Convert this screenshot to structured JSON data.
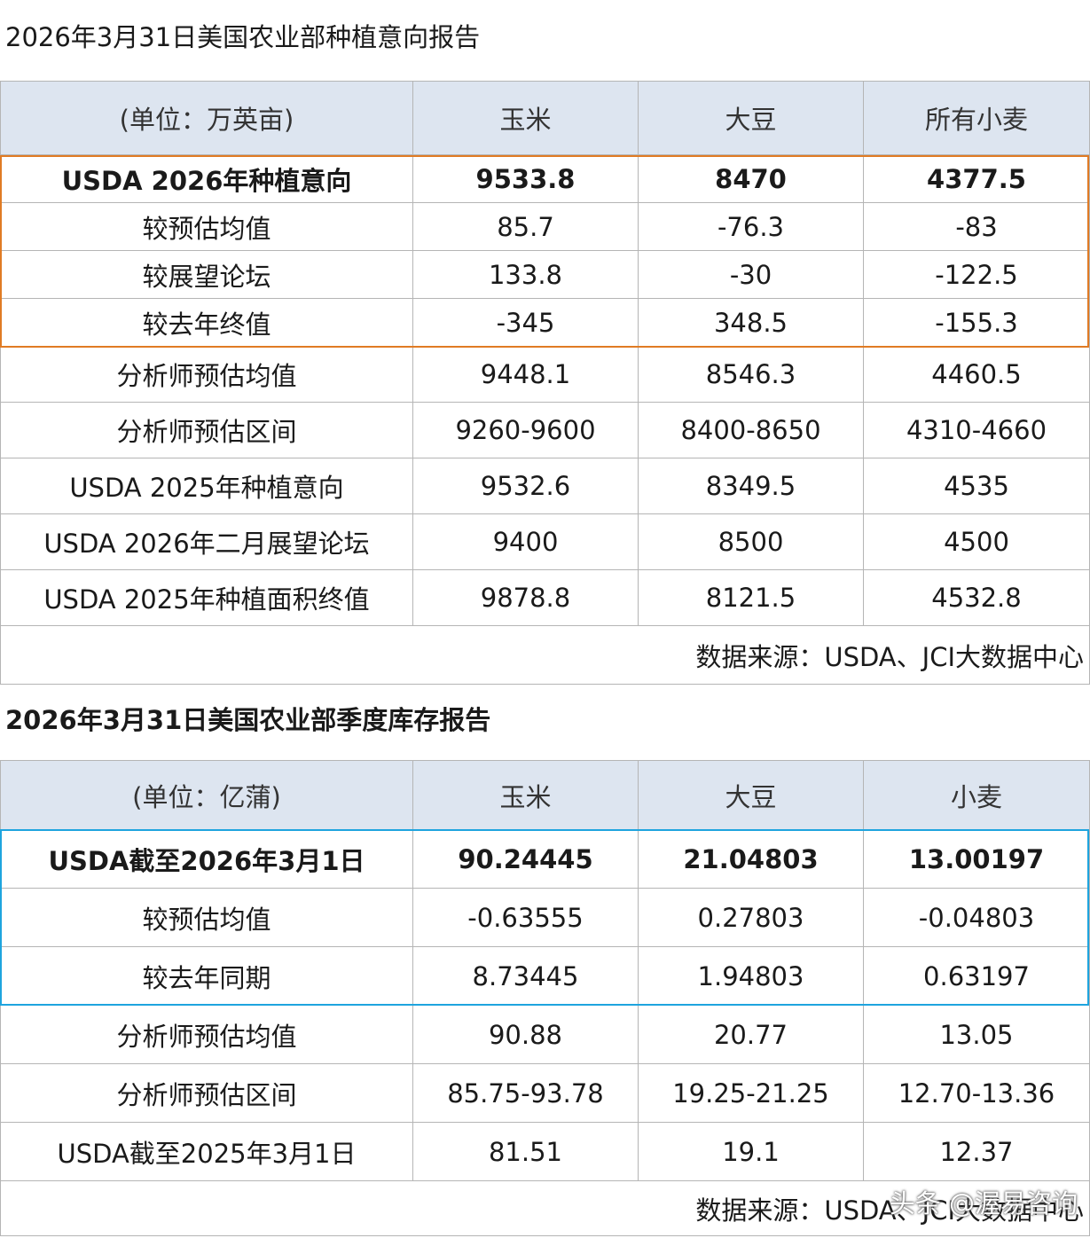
{
  "colors": {
    "orange_box": "#e07b24",
    "blue_box": "#1ea4de",
    "header_bg": "#dde5f0"
  },
  "table1": {
    "title": "2026年3月31日美国农业部种植意向报告",
    "headers": [
      "(单位：万英亩)",
      "玉米",
      "大豆",
      "所有小麦"
    ],
    "rows": [
      [
        "USDA 2026年种植意向",
        "9533.8",
        "8470",
        "4377.5"
      ],
      [
        "较预估均值",
        "85.7",
        "-76.3",
        "-83"
      ],
      [
        "较展望论坛",
        "133.8",
        "-30",
        "-122.5"
      ],
      [
        "较去年终值",
        "-345",
        "348.5",
        "-155.3"
      ],
      [
        "分析师预估均值",
        "9448.1",
        "8546.3",
        "4460.5"
      ],
      [
        "分析师预估区间",
        "9260-9600",
        "8400-8650",
        "4310-4660"
      ],
      [
        "USDA 2025年种植意向",
        "9532.6",
        "8349.5",
        "4535"
      ],
      [
        "USDA 2026年二月展望论坛",
        "9400",
        "8500",
        "4500"
      ],
      [
        "USDA  2025年种植面积终值",
        "9878.8",
        "8121.5",
        "4532.8"
      ]
    ],
    "source": "数据来源：USDA、JCI大数据中心"
  },
  "table2": {
    "title": "2026年3月31日美国农业部季度库存报告",
    "headers": [
      "(单位：亿蒲)",
      "玉米",
      "大豆",
      "小麦"
    ],
    "rows": [
      [
        "USDA截至2026年3月1日",
        "90.24445",
        "21.04803",
        "13.00197"
      ],
      [
        "较预估均值",
        "-0.63555",
        "0.27803",
        "-0.04803"
      ],
      [
        "较去年同期",
        "8.73445",
        "1.94803",
        "0.63197"
      ],
      [
        "分析师预估均值",
        "90.88",
        "20.77",
        "13.05"
      ],
      [
        "分析师预估区间",
        "85.75-93.78",
        "19.25-21.25",
        "12.70-13.36"
      ],
      [
        "USDA截至2025年3月1日",
        "81.51",
        "19.1",
        "12.37"
      ]
    ],
    "source": "数据来源：USDA、JCI大数据中心"
  },
  "watermark": "头条 @渥易咨询"
}
